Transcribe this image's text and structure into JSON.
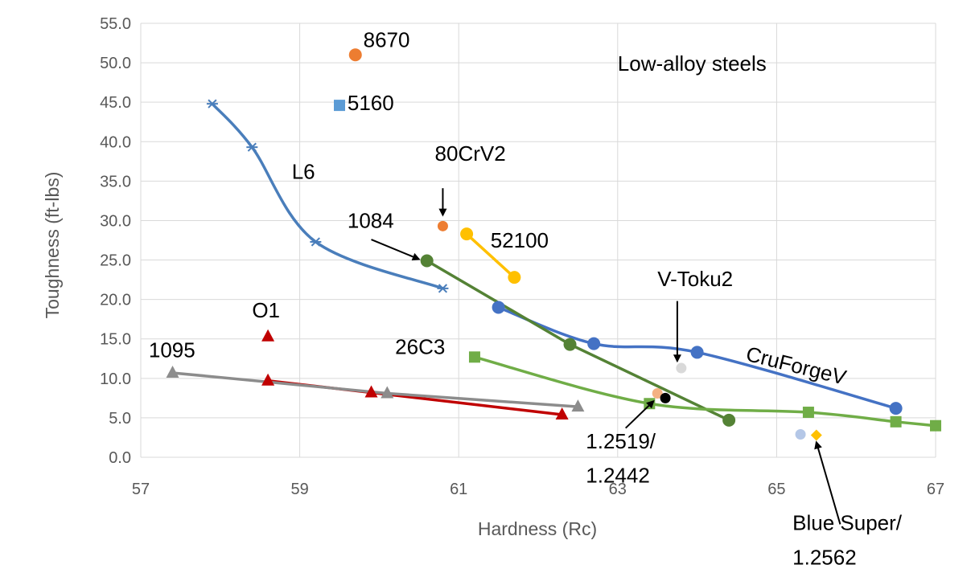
{
  "chart_data": {
    "type": "scatter",
    "title": "",
    "xlabel": "Hardness (Rc)",
    "ylabel": "Toughness (ft-lbs)",
    "xlim": [
      57,
      67
    ],
    "ylim": [
      0,
      55
    ],
    "x_ticks": [
      "57",
      "59",
      "61",
      "63",
      "65",
      "67"
    ],
    "y_ticks": [
      "0.0",
      "5.0",
      "10.0",
      "15.0",
      "20.0",
      "25.0",
      "30.0",
      "35.0",
      "40.0",
      "45.0",
      "50.0",
      "55.0"
    ],
    "grid": true,
    "series": [
      {
        "id": "l6",
        "color": "#4a7ebb",
        "marker": "star",
        "line": "smooth",
        "points": [
          [
            57.9,
            44.8
          ],
          [
            58.4,
            39.3
          ],
          [
            59.2,
            27.3
          ],
          [
            60.8,
            21.4
          ]
        ]
      },
      {
        "id": "cruforgev",
        "color": "#4472c4",
        "marker": "circle",
        "line": "smooth",
        "points": [
          [
            61.5,
            19.0
          ],
          [
            62.7,
            14.4
          ],
          [
            64.0,
            13.3
          ],
          [
            66.5,
            6.2
          ]
        ]
      },
      {
        "id": "1084",
        "color": "#548235",
        "marker": "circle",
        "line": "straight",
        "points": [
          [
            60.6,
            24.9
          ],
          [
            62.4,
            14.3
          ],
          [
            64.4,
            4.7
          ]
        ]
      },
      {
        "id": "26c3",
        "color": "#70ad47",
        "marker": "square",
        "line": "smooth",
        "points": [
          [
            61.2,
            12.7
          ],
          [
            63.4,
            6.8
          ],
          [
            65.4,
            5.7
          ],
          [
            66.5,
            4.5
          ],
          [
            67.0,
            4.0
          ]
        ]
      },
      {
        "id": "52100",
        "color": "#ffc000",
        "marker": "circle",
        "line": "straight",
        "points": [
          [
            61.1,
            28.3
          ],
          [
            61.7,
            22.8
          ]
        ]
      },
      {
        "id": "o1",
        "color": "#c00000",
        "marker": "triangle",
        "line": "straight",
        "points": [
          [
            58.6,
            9.7
          ],
          [
            59.9,
            8.2
          ],
          [
            62.3,
            5.4
          ]
        ]
      },
      {
        "id": "1095",
        "color": "#8c8c8c",
        "marker": "triangle",
        "line": "straight",
        "points": [
          [
            57.4,
            10.7
          ],
          [
            60.1,
            8.1
          ],
          [
            62.5,
            6.4
          ]
        ]
      },
      {
        "id": "o1-single",
        "color": "#c00000",
        "marker": "triangle",
        "line": "none",
        "points": [
          [
            58.6,
            15.3
          ]
        ]
      },
      {
        "id": "8670",
        "color": "#ed7d31",
        "marker": "circle",
        "line": "none",
        "points": [
          [
            59.7,
            51.0
          ]
        ]
      },
      {
        "id": "5160",
        "color": "#5b9bd5",
        "marker": "square",
        "line": "none",
        "points": [
          [
            59.5,
            44.6
          ]
        ]
      },
      {
        "id": "80crv2",
        "color": "#ed7d31",
        "marker": "circle-small",
        "line": "none",
        "points": [
          [
            60.8,
            29.3
          ]
        ]
      },
      {
        "id": "v-toku2",
        "color": "#d9d9d9",
        "marker": "circle-small",
        "line": "none",
        "points": [
          [
            63.8,
            11.3
          ]
        ]
      },
      {
        "id": "1.2519",
        "color": "#f4b183",
        "marker": "circle-small",
        "line": "none",
        "points": [
          [
            63.5,
            8.1
          ]
        ]
      },
      {
        "id": "1.2442",
        "color": "#000000",
        "marker": "circle-small",
        "line": "none",
        "points": [
          [
            63.6,
            7.5
          ]
        ]
      },
      {
        "id": "1.2562",
        "color": "#b4c7e7",
        "marker": "circle-small",
        "line": "none",
        "points": [
          [
            65.3,
            2.9
          ]
        ]
      },
      {
        "id": "blue-super",
        "color": "#ffc000",
        "marker": "diamond",
        "line": "none",
        "points": [
          [
            65.5,
            2.8
          ]
        ]
      }
    ],
    "annotations": [
      {
        "id": "8670",
        "text": "8670",
        "x": 59.8,
        "y": 52.0
      },
      {
        "id": "5160",
        "text": "5160",
        "x": 59.6,
        "y": 44.0
      },
      {
        "id": "80crv2",
        "text": "80CrV2",
        "x": 60.7,
        "y": 37.6
      },
      {
        "id": "l6",
        "text": "L6",
        "x": 58.9,
        "y": 35.3
      },
      {
        "id": "1084",
        "text": "1084",
        "x": 59.6,
        "y": 29.1
      },
      {
        "id": "52100",
        "text": "52100",
        "x": 61.4,
        "y": 26.6
      },
      {
        "id": "v-toku2",
        "text": "V-Toku2",
        "x": 63.5,
        "y": 21.7
      },
      {
        "id": "o1",
        "text": "O1",
        "x": 58.4,
        "y": 17.7
      },
      {
        "id": "cruforgev",
        "text": "CruForgeV",
        "x": 64.6,
        "y": 12.3
      },
      {
        "id": "26c3",
        "text": "26C3",
        "x": 60.2,
        "y": 13.1
      },
      {
        "id": "1095",
        "text": "1095",
        "x": 57.1,
        "y": 12.7
      },
      {
        "id": "1.2519",
        "text": "1.2519/",
        "x": 62.6,
        "y": 1.1
      },
      {
        "id": "1.2442",
        "text": "1.2442",
        "x": 62.6,
        "y": -3.2
      },
      {
        "id": "blue-super",
        "text": "Blue Super/",
        "x": 65.2,
        "y": -9.2
      },
      {
        "id": "1.2562",
        "text": "1.2562",
        "x": 65.2,
        "y": -13.6
      },
      {
        "id": "low-alloy",
        "text": "Low-alloy steels",
        "x": 63.0,
        "y": 49.0
      }
    ],
    "arrows": [
      {
        "id": "80crv2",
        "from": [
          60.8,
          34.1
        ],
        "to": [
          60.8,
          30.7
        ]
      },
      {
        "id": "1084",
        "from": [
          59.9,
          27.6
        ],
        "to": [
          60.5,
          25.1
        ]
      },
      {
        "id": "v-toku2",
        "from": [
          63.75,
          19.8
        ],
        "to": [
          63.75,
          12.2
        ]
      },
      {
        "id": "1.2519",
        "from": [
          63.1,
          3.7
        ],
        "to": [
          63.45,
          7.1
        ]
      },
      {
        "id": "blue-super",
        "from": [
          65.8,
          -8.5
        ],
        "to": [
          65.5,
          1.9
        ]
      }
    ]
  }
}
